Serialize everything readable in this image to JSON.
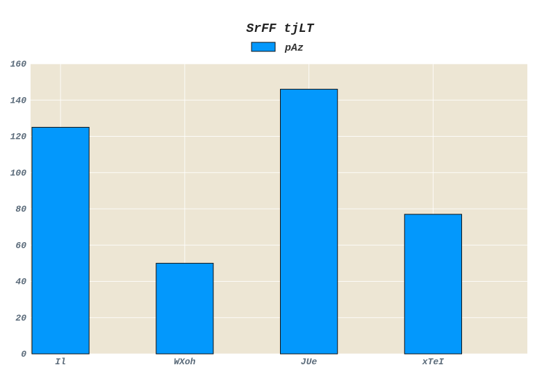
{
  "chart_data": {
    "type": "bar",
    "title": "SrFF tjLT",
    "xlabel": "",
    "ylabel": "",
    "categories": [
      "Il",
      "WXoh",
      "JUe",
      "xTeI"
    ],
    "series": [
      {
        "name": "pAz",
        "values": [
          125,
          50,
          146,
          77
        ],
        "color": "#0398fc"
      }
    ],
    "ylim": [
      0,
      160
    ],
    "yticks": [
      0,
      20,
      40,
      60,
      80,
      100,
      120,
      140,
      160
    ],
    "grid": true,
    "legend_position": "top-center",
    "plot_background": "#ede6d4"
  }
}
